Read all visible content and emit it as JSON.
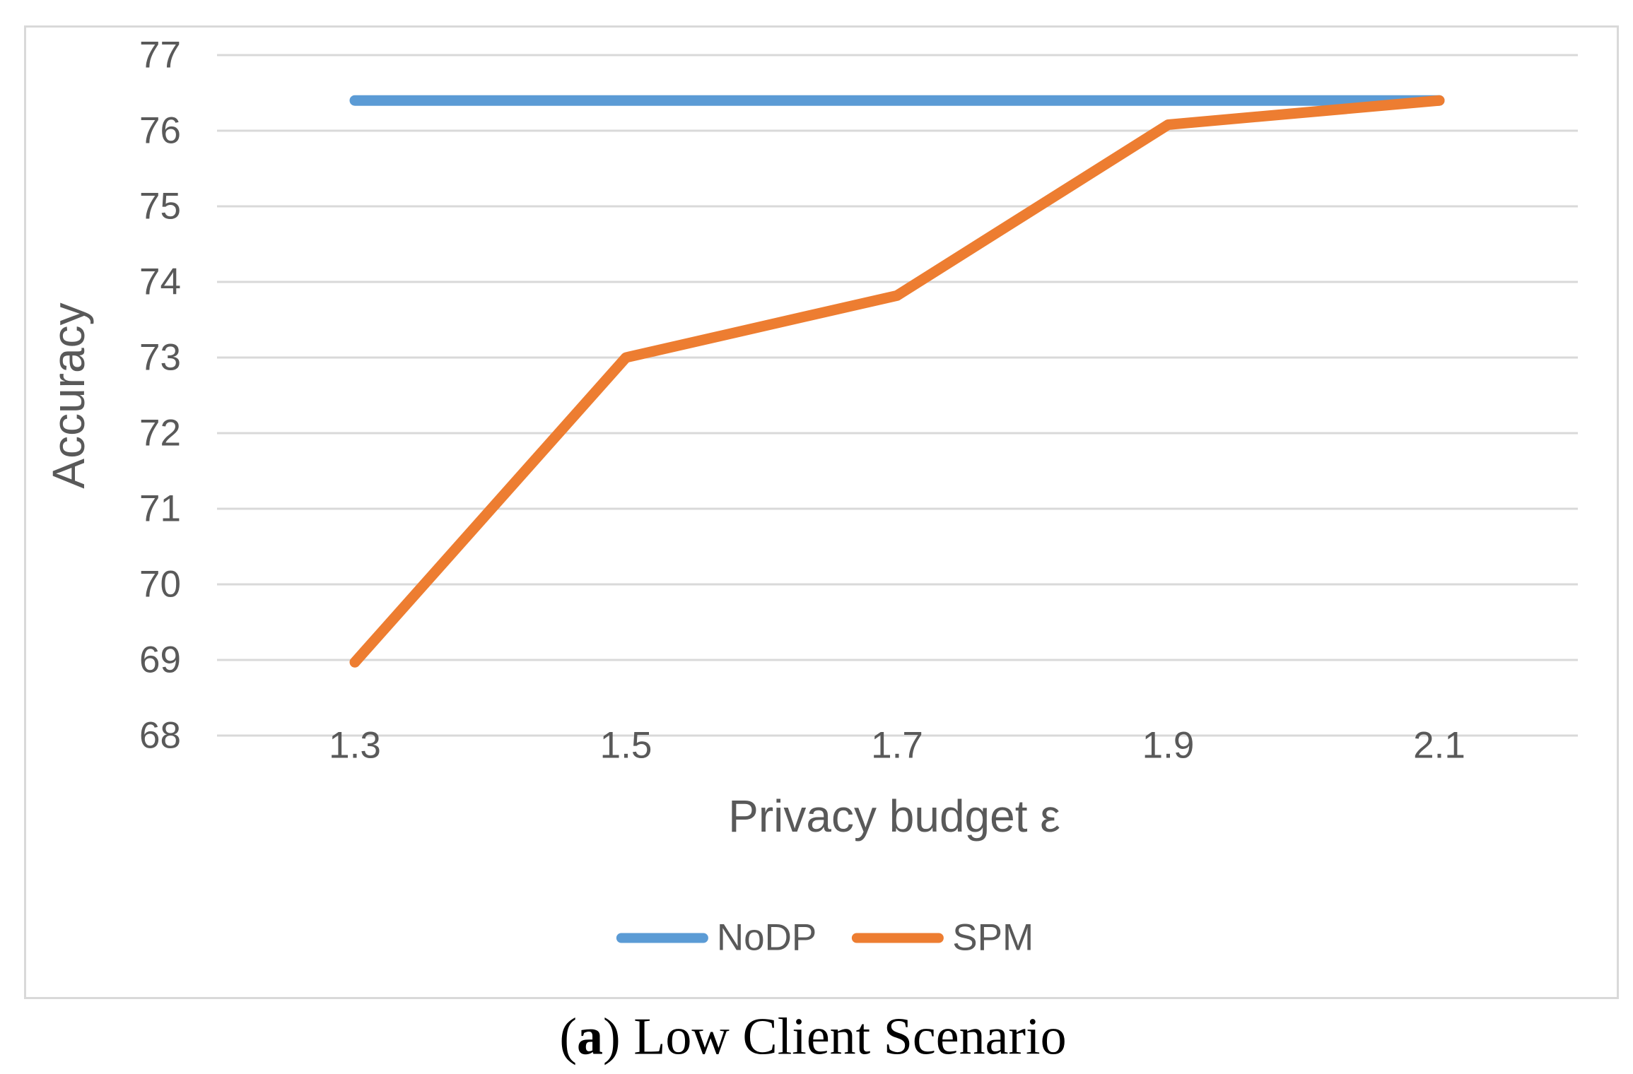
{
  "chart_data": {
    "type": "line",
    "x": [
      1.3,
      1.5,
      1.7,
      1.9,
      2.1
    ],
    "xtick_labels": [
      "1.3",
      "1.5",
      "1.7",
      "1.9",
      "2.1"
    ],
    "yticks": [
      77,
      76,
      75,
      74,
      73,
      72,
      71,
      70,
      69,
      68
    ],
    "ylim": [
      68,
      77
    ],
    "xlabel": "Privacy budget ε",
    "ylabel": "Accuracy",
    "grid": "horizontal",
    "legend_position": "bottom",
    "series": [
      {
        "name": "NoDP",
        "color": "#5B9BD5",
        "values": [
          76.4,
          76.4,
          76.4,
          76.4,
          76.4
        ]
      },
      {
        "name": "SPM",
        "color": "#ED7D31",
        "values": [
          68.97,
          73.0,
          73.82,
          76.08,
          76.4
        ]
      }
    ]
  },
  "caption": {
    "open": "(",
    "letter": "a",
    "close": ")",
    "text": " Low Client Scenario",
    "full": "(a) Low Client Scenario"
  },
  "colors": {
    "grid": "#D9D9D9",
    "frame": "#D9D9D9",
    "axis_text": "#595959",
    "background": "#FFFFFF"
  }
}
